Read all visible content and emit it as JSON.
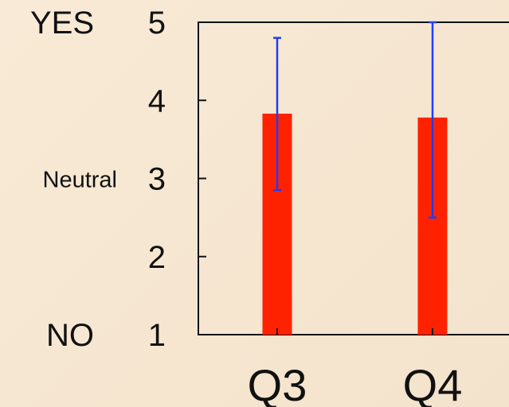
{
  "chart_data": {
    "type": "bar",
    "categories": [
      "Q3",
      "Q4"
    ],
    "values": [
      3.83,
      3.78
    ],
    "error_low": [
      2.85,
      2.5
    ],
    "error_high": [
      4.8,
      5.0
    ],
    "ylim": [
      1,
      5
    ],
    "yticks": [
      "1",
      "2",
      "3",
      "4",
      "5"
    ],
    "y_category_labels": [
      {
        "value": 5,
        "label": "YES"
      },
      {
        "value": 3,
        "label": "Neutral"
      },
      {
        "value": 1,
        "label": "NO"
      }
    ],
    "title": "",
    "xlabel": "",
    "ylabel": "",
    "grid": false,
    "colors": {
      "bar": "#ff2200",
      "error_bar": "#1f3dff",
      "axis": "#111111",
      "background": "#f6e6d0"
    }
  }
}
